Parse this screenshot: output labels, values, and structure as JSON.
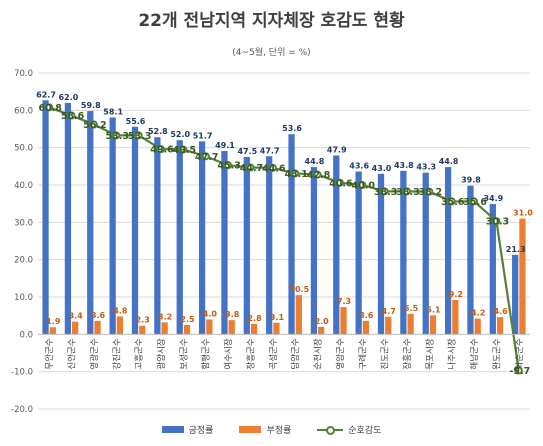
{
  "chart_data": {
    "type": "bar",
    "title": "22개 전남지역 지자체장 호감도 현황",
    "subtitle": "(4~5월, 단위 = %)",
    "ylim": [
      -20,
      70
    ],
    "yticks": [
      "70.0",
      "60.0",
      "50.0",
      "40.0",
      "30.0",
      "20.0",
      "10.0",
      "0.0",
      "-10.0",
      "-20.0"
    ],
    "grid": true,
    "legend_position": "bottom",
    "categories": [
      "무안군수",
      "신안군수",
      "영광군수",
      "강진군수",
      "고흥군수",
      "광양시장",
      "보성군수",
      "함평군수",
      "여수시장",
      "장흥군수",
      "곡성군수",
      "담양군수",
      "순천시장",
      "영암군수",
      "구례군수",
      "진도군수",
      "장흥군수",
      "목포시장",
      "나주시장",
      "해남군수",
      "완도군수",
      "화순군수"
    ],
    "series": [
      {
        "name": "긍정률",
        "color": "#4472c4",
        "values": [
          62.7,
          62.0,
          59.8,
          58.1,
          55.6,
          52.8,
          52.0,
          51.7,
          49.1,
          47.5,
          47.7,
          53.6,
          44.8,
          47.9,
          43.6,
          43.0,
          43.8,
          43.3,
          44.8,
          39.8,
          34.9,
          21.3
        ],
        "labels": [
          "62.7",
          "62.0",
          "59.8",
          "58.1",
          "55.6",
          "52.8",
          "52.0",
          "51.7",
          "49.1",
          "47.5",
          "47.7",
          "53.6",
          "44.8",
          "47.9",
          "43.6",
          "43.0",
          "43.8",
          "43.3",
          "44.8",
          "39.8",
          "34.9",
          "21.3"
        ]
      },
      {
        "name": "부정률",
        "color": "#ed7d31",
        "values": [
          1.9,
          3.4,
          3.6,
          4.8,
          2.3,
          3.2,
          2.5,
          4.0,
          3.8,
          2.8,
          3.1,
          10.5,
          2.0,
          7.3,
          3.6,
          4.7,
          5.5,
          5.1,
          9.2,
          4.2,
          4.6,
          31.0
        ],
        "labels": [
          "1.9",
          "3.4",
          "3.6",
          "4.8",
          "2.3",
          "3.2",
          "2.5",
          "4.0",
          "3.8",
          "2.8",
          "3.1",
          "10.5",
          "2.0",
          "7.3",
          "3.6",
          "4.7",
          "5.5",
          "5.1",
          "9.2",
          "4.2",
          "4.6",
          "31.0"
        ]
      },
      {
        "name": "순호감도",
        "color": "#538135",
        "values": [
          60.8,
          58.6,
          56.2,
          53.3,
          53.3,
          49.6,
          49.5,
          47.7,
          45.3,
          44.7,
          44.6,
          43.1,
          42.8,
          40.6,
          40.0,
          38.3,
          38.3,
          38.2,
          35.6,
          35.6,
          30.3,
          -9.7
        ],
        "labels": [
          "60.8",
          "58.6",
          "56.2",
          "53.3",
          "53.3",
          "49.6",
          "49.5",
          "47.7",
          "45.3",
          "44.7",
          "44.6",
          "43.1",
          "42.8",
          "40.6",
          "40.0",
          "38.3",
          "38.3",
          "38.2",
          "35.6",
          "35.6",
          "30.3",
          "-9.7"
        ]
      }
    ]
  }
}
